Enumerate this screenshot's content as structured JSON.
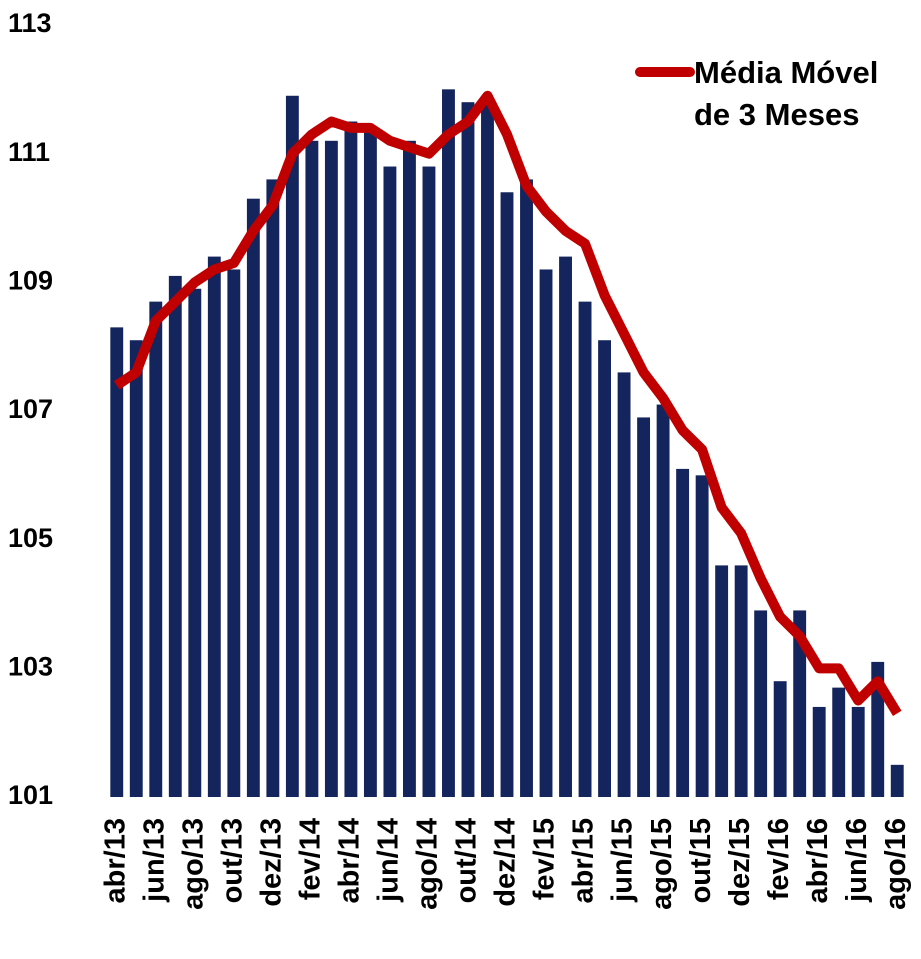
{
  "chart_data": {
    "type": "bar",
    "categories": [
      "abr/13",
      null,
      "jun/13",
      null,
      "ago/13",
      null,
      "out/13",
      null,
      "dez/13",
      null,
      "fev/14",
      null,
      "abr/14",
      null,
      "jun/14",
      null,
      "ago/14",
      null,
      "out/14",
      null,
      "dez/14",
      null,
      "fev/15",
      null,
      "abr/15",
      null,
      "jun/15",
      null,
      "ago/15",
      null,
      "out/15",
      null,
      "dez/15",
      null,
      "fev/16",
      null,
      "abr/16",
      null,
      "jun/16",
      null,
      "ago/16"
    ],
    "series": [
      {
        "type": "bar",
        "color": "#14245c",
        "values": [
          108.3,
          108.1,
          108.7,
          109.1,
          108.9,
          109.4,
          109.2,
          110.3,
          110.6,
          111.9,
          111.2,
          111.2,
          111.5,
          111.4,
          110.8,
          111.2,
          110.8,
          112.0,
          111.8,
          111.8,
          110.4,
          110.6,
          109.2,
          109.4,
          108.7,
          108.1,
          107.6,
          106.9,
          107.1,
          106.1,
          106.0,
          104.6,
          104.6,
          103.9,
          102.8,
          103.9,
          102.4,
          102.7,
          102.4,
          103.1,
          101.5
        ]
      },
      {
        "type": "line",
        "name": "Média Móvel de 3 Meses",
        "color": "#c00000",
        "values": [
          107.4,
          107.6,
          108.4,
          108.7,
          109.0,
          109.2,
          109.3,
          109.8,
          110.2,
          111.0,
          111.3,
          111.5,
          111.4,
          111.4,
          111.2,
          111.1,
          111.0,
          111.3,
          111.5,
          111.9,
          111.3,
          110.5,
          110.1,
          109.8,
          109.6,
          108.8,
          108.2,
          107.6,
          107.2,
          106.7,
          106.4,
          105.5,
          105.1,
          104.4,
          103.8,
          103.5,
          103.0,
          103.0,
          102.5,
          102.8,
          102.3
        ]
      }
    ],
    "ylim": [
      101,
      113
    ],
    "yticks": [
      101,
      103,
      105,
      107,
      109,
      111,
      113
    ],
    "legend": "top-right"
  }
}
